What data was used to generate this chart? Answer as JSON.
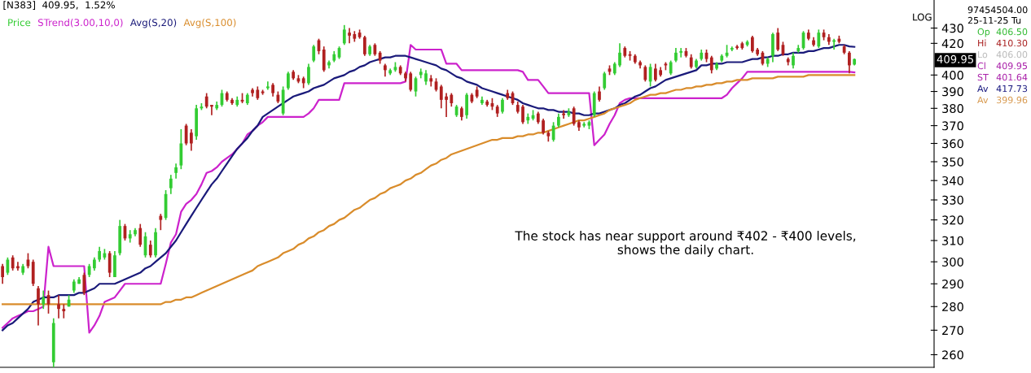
{
  "chart_data": {
    "type": "candlestick",
    "title": "[N383]  409.95,  1.52%",
    "categories": [
      null,
      null,
      null,
      null,
      null,
      null,
      null,
      null,
      null,
      null,
      null,
      null,
      null,
      null,
      null,
      null,
      null,
      null,
      null,
      null,
      null,
      null,
      null,
      null,
      null,
      null,
      null,
      null,
      null,
      null,
      null,
      null,
      null,
      null,
      null,
      null,
      null,
      null,
      null,
      null,
      null,
      null,
      null,
      null,
      null,
      null,
      null,
      null,
      null,
      null,
      null,
      null,
      null,
      null,
      null,
      null,
      null,
      null,
      null,
      null,
      null,
      null,
      null,
      null,
      null,
      null,
      null,
      null,
      null,
      null,
      null,
      null,
      null,
      null,
      null,
      null,
      null,
      null,
      null,
      null,
      null,
      null,
      null,
      null,
      null,
      null,
      null,
      null,
      null,
      null,
      null,
      null,
      null,
      null,
      null,
      null,
      null,
      null,
      null,
      null,
      null,
      null,
      null,
      null,
      null,
      null,
      null,
      null,
      null,
      null,
      null,
      null,
      null,
      null,
      null,
      null,
      null,
      null,
      null,
      null,
      null,
      null,
      null,
      null,
      null,
      null,
      null,
      null,
      null,
      null,
      null,
      null,
      null,
      null,
      null,
      null,
      null,
      null,
      null,
      null,
      null,
      null,
      null,
      null,
      null,
      null,
      null,
      null,
      null,
      null,
      null,
      null,
      null,
      null,
      null,
      null,
      null,
      null,
      null,
      null,
      null,
      null,
      null,
      null,
      null,
      null,
      null,
      null
    ],
    "ohlc": [
      [
        298,
        299,
        290,
        293
      ],
      [
        295,
        302,
        294,
        301
      ],
      [
        302,
        303,
        296,
        297
      ],
      [
        298,
        300,
        296,
        297
      ],
      [
        295,
        299,
        294,
        298
      ],
      [
        301,
        304,
        297,
        298
      ],
      [
        300,
        301,
        289,
        290
      ],
      [
        288,
        289,
        272,
        281
      ],
      [
        281,
        287,
        279,
        284
      ],
      [
        285,
        287,
        277,
        281
      ],
      [
        257,
        275,
        255,
        273
      ],
      [
        281,
        285,
        275,
        279
      ],
      [
        279,
        281,
        275,
        278
      ],
      [
        280,
        285,
        280,
        283
      ],
      [
        287,
        292,
        286,
        291
      ],
      [
        290,
        293,
        290,
        292
      ],
      [
        294,
        295,
        285,
        286
      ],
      [
        294,
        299,
        293,
        298
      ],
      [
        297,
        302,
        296,
        301
      ],
      [
        301,
        307,
        300,
        305
      ],
      [
        302,
        306,
        301,
        304
      ],
      [
        304,
        305,
        293,
        295
      ],
      [
        293,
        305,
        293,
        303
      ],
      [
        304,
        320,
        303,
        317
      ],
      [
        317,
        318,
        310,
        311
      ],
      [
        311,
        315,
        309,
        313
      ],
      [
        313,
        316,
        312,
        315
      ],
      [
        316,
        318,
        307,
        308
      ],
      [
        303,
        314,
        302,
        312
      ],
      [
        308,
        310,
        302,
        303
      ],
      [
        303,
        316,
        302,
        314
      ],
      [
        322,
        323,
        315,
        320
      ],
      [
        321,
        335,
        320,
        333
      ],
      [
        336,
        343,
        333,
        341
      ],
      [
        344,
        349,
        341,
        347
      ],
      [
        348,
        368,
        346,
        360
      ],
      [
        370,
        371,
        359,
        360
      ],
      [
        366,
        368,
        356,
        360
      ],
      [
        364,
        382,
        362,
        380
      ],
      [
        380,
        383,
        379,
        381
      ],
      [
        387,
        389,
        380,
        381
      ],
      [
        382,
        382,
        376,
        381
      ],
      [
        380,
        384,
        379,
        382
      ],
      [
        382,
        391,
        381,
        389
      ],
      [
        389,
        390,
        384,
        385
      ],
      [
        385,
        386,
        382,
        383
      ],
      [
        382,
        387,
        381,
        385
      ],
      [
        385,
        389,
        383,
        384
      ],
      [
        383,
        389,
        382,
        388
      ],
      [
        391,
        392,
        387,
        389
      ],
      [
        391,
        393,
        385,
        386
      ],
      [
        390,
        391,
        388,
        389
      ],
      [
        392,
        396,
        391,
        393
      ],
      [
        394,
        395,
        387,
        389
      ],
      [
        388,
        390,
        383,
        384
      ],
      [
        377,
        393,
        376,
        391
      ],
      [
        392,
        402,
        391,
        401
      ],
      [
        402,
        403,
        397,
        398
      ],
      [
        398,
        400,
        395,
        396
      ],
      [
        398,
        399,
        392,
        395
      ],
      [
        395,
        407,
        394,
        405
      ],
      [
        409,
        419,
        408,
        418
      ],
      [
        422,
        423,
        413,
        415
      ],
      [
        416,
        418,
        402,
        403
      ],
      [
        406,
        409,
        404,
        408
      ],
      [
        409,
        415,
        408,
        413
      ],
      [
        411,
        418,
        410,
        417
      ],
      [
        420,
        432,
        419,
        429
      ],
      [
        427,
        430,
        420,
        425
      ],
      [
        426,
        428,
        421,
        423
      ],
      [
        427,
        429,
        423,
        424
      ],
      [
        424,
        425,
        412,
        413
      ],
      [
        413,
        419,
        412,
        418
      ],
      [
        419,
        420,
        412,
        413
      ],
      [
        414,
        415,
        407,
        409
      ],
      [
        406,
        407,
        399,
        403
      ],
      [
        401,
        404,
        400,
        403
      ],
      [
        403,
        408,
        402,
        405
      ],
      [
        405,
        406,
        400,
        401
      ],
      [
        401,
        402,
        396,
        398
      ],
      [
        401,
        402,
        390,
        391
      ],
      [
        390,
        399,
        387,
        398
      ],
      [
        400,
        404,
        398,
        402
      ],
      [
        396,
        403,
        394,
        401
      ],
      [
        398,
        400,
        393,
        396
      ],
      [
        396,
        398,
        390,
        391
      ],
      [
        393,
        394,
        380,
        385
      ],
      [
        387,
        389,
        375,
        385
      ],
      [
        388,
        389,
        381,
        383
      ],
      [
        376,
        382,
        375,
        381
      ],
      [
        380,
        381,
        373,
        375
      ],
      [
        376,
        389,
        374,
        388
      ],
      [
        388,
        389,
        383,
        384
      ],
      [
        391,
        393,
        386,
        387
      ],
      [
        383,
        387,
        382,
        385
      ],
      [
        384,
        385,
        381,
        382
      ],
      [
        383,
        386,
        379,
        381
      ],
      [
        381,
        382,
        375,
        377
      ],
      [
        378,
        386,
        377,
        385
      ],
      [
        389,
        391,
        385,
        386
      ],
      [
        389,
        390,
        382,
        383
      ],
      [
        382,
        384,
        377,
        378
      ],
      [
        381,
        382,
        371,
        372
      ],
      [
        373,
        377,
        371,
        375
      ],
      [
        374,
        379,
        373,
        376
      ],
      [
        377,
        378,
        371,
        372
      ],
      [
        373,
        374,
        365,
        366
      ],
      [
        366,
        367,
        361,
        364
      ],
      [
        362,
        372,
        361,
        370
      ],
      [
        370,
        377,
        369,
        375
      ],
      [
        377,
        379,
        374,
        376
      ],
      [
        376,
        380,
        375,
        378
      ],
      [
        380,
        381,
        370,
        371
      ],
      [
        372,
        373,
        367,
        369
      ],
      [
        370,
        372,
        369,
        371
      ],
      [
        370,
        373,
        368,
        372
      ],
      [
        376,
        390,
        375,
        389
      ],
      [
        390,
        393,
        384,
        385
      ],
      [
        392,
        402,
        391,
        401
      ],
      [
        404,
        406,
        400,
        402
      ],
      [
        401,
        408,
        400,
        407
      ],
      [
        406,
        420,
        405,
        414
      ],
      [
        417,
        418,
        411,
        412
      ],
      [
        413,
        415,
        409,
        412
      ],
      [
        412,
        413,
        407,
        408
      ],
      [
        408,
        409,
        404,
        406
      ],
      [
        405,
        406,
        396,
        397
      ],
      [
        396,
        407,
        393,
        405
      ],
      [
        404,
        407,
        396,
        397
      ],
      [
        403,
        405,
        399,
        400
      ],
      [
        407,
        408,
        403,
        406
      ],
      [
        401,
        409,
        400,
        408
      ],
      [
        409,
        417,
        408,
        414
      ],
      [
        414,
        417,
        411,
        415
      ],
      [
        415,
        417,
        411,
        412
      ],
      [
        411,
        413,
        404,
        405
      ],
      [
        405,
        410,
        404,
        409
      ],
      [
        410,
        416,
        409,
        414
      ],
      [
        414,
        416,
        408,
        410
      ],
      [
        411,
        412,
        401,
        403
      ],
      [
        404,
        408,
        403,
        407
      ],
      [
        409,
        413,
        408,
        412
      ],
      [
        412,
        419,
        411,
        414
      ],
      [
        416,
        418,
        415,
        417
      ],
      [
        418,
        419,
        416,
        417
      ],
      [
        420,
        421,
        416,
        417
      ],
      [
        419,
        422,
        418,
        421
      ],
      [
        424,
        425,
        414,
        415
      ],
      [
        416,
        417,
        412,
        413
      ],
      [
        414,
        415,
        406,
        407
      ],
      [
        407,
        411,
        405,
        410
      ],
      [
        412,
        427,
        408,
        426
      ],
      [
        427,
        430,
        415,
        416
      ],
      [
        419,
        421,
        412,
        413
      ],
      [
        410,
        411,
        406,
        408
      ],
      [
        406,
        414,
        404,
        412
      ],
      [
        415,
        419,
        414,
        417
      ],
      [
        417,
        428,
        416,
        427
      ],
      [
        427,
        429,
        422,
        423
      ],
      [
        422,
        424,
        418,
        419
      ],
      [
        418,
        429,
        417,
        427
      ],
      [
        427,
        429,
        422,
        424
      ],
      [
        424,
        426,
        419,
        421
      ],
      [
        421,
        423,
        416,
        422
      ],
      [
        423,
        425,
        420,
        421
      ],
      [
        418,
        419,
        413,
        414
      ],
      [
        414,
        415,
        401,
        406
      ],
      [
        406.5,
        410.3,
        406.0,
        409.95
      ]
    ],
    "series": [
      {
        "name": "STrend(3.00,10,0)",
        "type": "line",
        "color": "#cc22cc",
        "values": [
          271,
          273,
          275,
          276,
          277,
          278,
          278,
          279,
          280,
          307,
          298,
          298,
          298,
          298,
          298,
          298,
          298,
          269,
          272,
          276,
          282,
          283,
          284,
          287,
          290,
          290,
          290,
          290,
          290,
          290,
          290,
          290,
          299,
          309,
          313,
          324,
          328,
          330,
          333,
          338,
          344,
          345,
          347,
          350,
          352,
          354,
          357,
          360,
          365,
          367,
          370,
          372,
          375,
          375,
          375,
          375,
          375,
          375,
          375,
          375,
          377,
          380,
          385,
          385,
          385,
          385,
          385,
          395,
          395,
          395,
          395,
          395,
          395,
          395,
          395,
          395,
          395,
          395,
          395,
          396,
          419,
          416,
          416,
          416,
          416,
          416,
          416,
          407,
          407,
          407,
          403,
          403,
          403,
          403,
          403,
          403,
          403,
          403,
          403,
          403,
          403,
          403,
          402,
          397,
          397,
          397,
          393,
          389,
          389,
          389,
          389,
          389,
          389,
          389,
          389,
          389,
          359,
          362,
          365,
          371,
          376,
          383,
          385,
          386,
          386,
          386,
          386,
          386,
          386,
          386,
          386,
          386,
          386,
          386,
          386,
          386,
          386,
          386,
          386,
          386,
          386,
          386,
          388,
          392,
          395,
          398,
          402,
          402,
          402,
          402,
          402,
          402,
          402,
          402,
          402,
          402,
          402,
          402,
          402,
          402,
          402,
          402,
          402,
          402,
          402,
          402,
          402,
          401.64
        ]
      },
      {
        "name": "Avg(S,20)",
        "type": "line",
        "color": "#1a1a7a",
        "values": [
          270,
          272,
          273,
          275,
          277,
          279,
          282,
          283,
          284,
          284,
          284,
          285,
          285,
          285,
          285,
          286,
          286,
          287,
          288,
          290,
          290,
          290,
          290,
          291,
          292,
          293,
          294,
          295,
          297,
          298,
          300,
          302,
          304,
          307,
          310,
          314,
          318,
          322,
          326,
          330,
          334,
          338,
          341,
          345,
          349,
          353,
          357,
          360,
          363,
          367,
          370,
          375,
          377,
          379,
          381,
          383,
          385,
          387,
          388,
          389,
          390,
          392,
          393,
          394,
          396,
          398,
          399,
          400,
          402,
          403,
          405,
          406,
          408,
          409,
          410,
          411,
          411,
          412,
          412,
          412,
          411,
          410,
          409,
          408,
          407,
          406,
          404,
          403,
          401,
          399,
          398,
          396,
          395,
          394,
          392,
          391,
          390,
          389,
          388,
          387,
          386,
          385,
          383,
          382,
          381,
          380,
          380,
          379,
          379,
          378,
          378,
          378,
          377,
          377,
          376,
          376,
          377,
          377,
          378,
          379,
          380,
          382,
          383,
          385,
          387,
          388,
          390,
          392,
          393,
          395,
          397,
          398,
          399,
          400,
          401,
          402,
          403,
          406,
          406,
          407,
          407,
          407,
          408,
          408,
          408,
          408,
          409,
          410,
          410,
          411,
          411,
          412,
          412,
          413,
          413,
          414,
          414,
          414,
          415,
          415,
          416,
          417,
          417,
          418,
          419,
          419,
          418,
          417.73
        ]
      },
      {
        "name": "Avg(S,100)",
        "type": "line",
        "color": "#d98c2b",
        "values": [
          281,
          281,
          281,
          281,
          281,
          281,
          281,
          281,
          281,
          281,
          281,
          281,
          281,
          281,
          281,
          281,
          281,
          281,
          281,
          281,
          281,
          281,
          281,
          281,
          281,
          281,
          281,
          281,
          281,
          281,
          281,
          281,
          282,
          282,
          283,
          283,
          284,
          284,
          285,
          286,
          287,
          288,
          289,
          290,
          291,
          292,
          293,
          294,
          295,
          296,
          298,
          299,
          300,
          301,
          302,
          304,
          305,
          306,
          308,
          309,
          311,
          312,
          314,
          315,
          317,
          318,
          320,
          321,
          323,
          325,
          326,
          328,
          330,
          331,
          333,
          334,
          336,
          337,
          338,
          340,
          341,
          343,
          344,
          346,
          348,
          349,
          351,
          352,
          354,
          355,
          356,
          357,
          358,
          359,
          360,
          361,
          362,
          362,
          363,
          363,
          363,
          364,
          364,
          365,
          365,
          366,
          366,
          367,
          368,
          369,
          370,
          371,
          372,
          373,
          373,
          374,
          375,
          376,
          377,
          379,
          380,
          381,
          382,
          383,
          385,
          386,
          387,
          388,
          388,
          389,
          389,
          390,
          391,
          391,
          392,
          392,
          393,
          393,
          394,
          394,
          395,
          395,
          396,
          396,
          397,
          397,
          397,
          398,
          398,
          398,
          398,
          398,
          399,
          399,
          399,
          399,
          399,
          399,
          400,
          400,
          400,
          400,
          400,
          400,
          400,
          400,
          400,
          399.96
        ]
      }
    ],
    "log": "y",
    "ylim": [
      255,
      449
    ],
    "yticks": [
      260,
      270,
      280,
      290,
      300,
      310,
      320,
      330,
      340,
      350,
      360,
      370,
      380,
      390,
      400,
      420,
      430
    ],
    "tick_labels": "y",
    "legend": "top left",
    "annotations": [
      "Price",
      "LOG",
      "409.95",
      "97454504.00",
      "25-11-25 Tu",
      "Op 406.50",
      "Hi 410.30",
      "Lo 406.00",
      "Cl 409.95",
      "ST 401.64",
      "Av 417.73",
      "Av 399.96",
      "The stock has near support around ₹402 - ₹400 levels,\nshows the daily chart."
    ]
  }
}
